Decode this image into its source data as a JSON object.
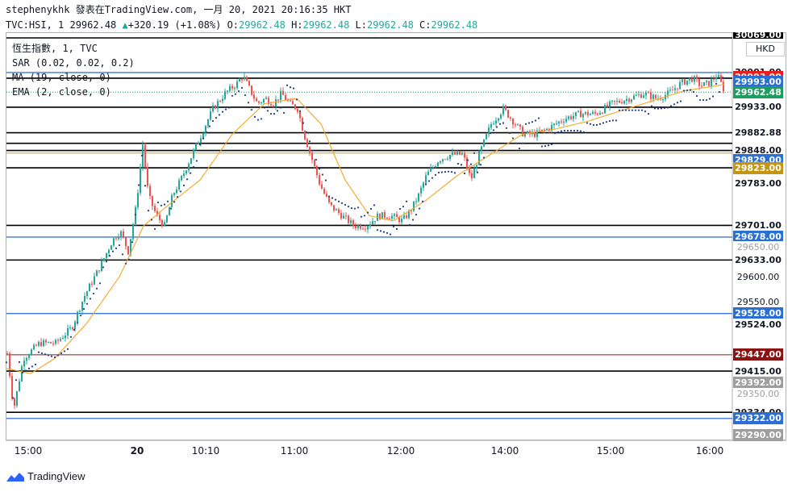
{
  "header": {
    "line1": "stephenykhk 發表在TradingView.com, 一月 20, 2021 20:16:35 HKT",
    "symbol": "TVC:HSI, 1 29962.48",
    "change_arrow": "▲",
    "change": "+320.19 (+1.08%)",
    "ohlc": [
      {
        "k": "O:",
        "v": "29962.48"
      },
      {
        "k": "H:",
        "v": "29962.48"
      },
      {
        "k": "L:",
        "v": "29962.48"
      },
      {
        "k": "C:",
        "v": "29962.48"
      }
    ]
  },
  "indicators": [
    "恆生指數, 1, TVC",
    "SAR (0.02, 0.02, 0.2)",
    "MA (19, close, 0)",
    "EMA (2, close, 0)"
  ],
  "currency": "HKD",
  "price_axis": {
    "top_value": 30069.0,
    "top_partial_label": "30069.00",
    "labels": [
      {
        "text": "30001.00",
        "value": 30001.0,
        "style": "plain",
        "bold": true
      },
      {
        "text": "29993.00",
        "value": 29993.0,
        "style": "red"
      },
      {
        "text": "29993.00",
        "value": 29982.5,
        "style": "blue"
      },
      {
        "text": "29962.48",
        "value": 29962.48,
        "style": "green"
      },
      {
        "text": "29933.00",
        "value": 29933.0,
        "style": "plain",
        "bold": true
      },
      {
        "text": "29882.88",
        "value": 29882.88,
        "style": "plain",
        "bold": true
      },
      {
        "text": "29848.00",
        "value": 29848.0,
        "style": "plain",
        "bold": true
      },
      {
        "text": "29829.00",
        "value": 29829.0,
        "style": "blue"
      },
      {
        "text": "29823.00",
        "value": 29814.0,
        "style": "gold"
      },
      {
        "text": "29783.00",
        "value": 29783.0,
        "style": "plain",
        "bold": true
      },
      {
        "text": "29701.00",
        "value": 29701.0,
        "style": "plain",
        "bold": true
      },
      {
        "text": "29678.00",
        "value": 29678.0,
        "style": "blue"
      },
      {
        "text": "29650.00",
        "value": 29658.0,
        "style": "faint"
      },
      {
        "text": "29633.00",
        "value": 29633.0,
        "style": "plain",
        "bold": true
      },
      {
        "text": "29600.00",
        "value": 29600.0,
        "style": "plain"
      },
      {
        "text": "29550.00",
        "value": 29550.0,
        "style": "plain"
      },
      {
        "text": "29528.00",
        "value": 29528.0,
        "style": "blue"
      },
      {
        "text": "29524.00",
        "value": 29506.0,
        "style": "plain",
        "bold": true
      },
      {
        "text": "29447.00",
        "value": 29447.0,
        "style": "darkred"
      },
      {
        "text": "29415.00",
        "value": 29415.0,
        "style": "plain",
        "bold": true
      },
      {
        "text": "29392.00",
        "value": 29392.0,
        "style": "gray"
      },
      {
        "text": "29350.00",
        "value": 29370.0,
        "style": "faint"
      },
      {
        "text": "29334.00",
        "value": 29334.0,
        "style": "plain",
        "bold": true
      },
      {
        "text": "29322.00",
        "value": 29322.0,
        "style": "blue"
      },
      {
        "text": "29290.00",
        "value": 29290.0,
        "style": "gray"
      }
    ]
  },
  "levels": [
    {
      "value": 30069,
      "kind": "black"
    },
    {
      "value": 30001,
      "kind": "blue"
    },
    {
      "value": 29990,
      "kind": "black"
    },
    {
      "value": 29933,
      "kind": "black"
    },
    {
      "value": 29882.88,
      "kind": "black"
    },
    {
      "value": 29862,
      "kind": "black"
    },
    {
      "value": 29848,
      "kind": "black"
    },
    {
      "value": 29843,
      "kind": "gold"
    },
    {
      "value": 29814,
      "kind": "black"
    },
    {
      "value": 29701,
      "kind": "black"
    },
    {
      "value": 29678,
      "kind": "blue"
    },
    {
      "value": 29633,
      "kind": "black"
    },
    {
      "value": 29528,
      "kind": "blue"
    },
    {
      "value": 29447,
      "kind": "darkred"
    },
    {
      "value": 29415,
      "kind": "black"
    },
    {
      "value": 29334,
      "kind": "black"
    },
    {
      "value": 29322,
      "kind": "blue"
    }
  ],
  "time_axis": [
    "15:00",
    "20",
    "10:10",
    "11:00",
    "12:00",
    "14:00",
    "15:00",
    "16:00"
  ],
  "colors": {
    "up": "#26a69a",
    "down": "#ef5350",
    "sar": "#1e3a8a",
    "ma": "#f5a623",
    "level_black": "#000000",
    "level_blue": "#3b78d8",
    "level_gold": "#c8a018",
    "level_darkred": "#8b1a1a",
    "label_red": "#e91e1e",
    "label_blue": "#2a6fd6",
    "label_green": "#1b9e5f",
    "label_gold": "#c49511",
    "label_darkred": "#8b1212",
    "label_gray": "#9e9e9e"
  },
  "chart_data": {
    "type": "candlestick",
    "symbol": "TVC:HSI",
    "interval": "1",
    "ylim": [
      29290,
      30069
    ],
    "close_path": [
      [
        0,
        29450
      ],
      [
        8,
        29340
      ],
      [
        20,
        29440
      ],
      [
        40,
        29470
      ],
      [
        60,
        29470
      ],
      [
        80,
        29500
      ],
      [
        95,
        29560
      ],
      [
        115,
        29620
      ],
      [
        130,
        29670
      ],
      [
        140,
        29690
      ],
      [
        150,
        29650
      ],
      [
        160,
        29740
      ],
      [
        168,
        29860
      ],
      [
        175,
        29760
      ],
      [
        185,
        29720
      ],
      [
        195,
        29700
      ],
      [
        205,
        29760
      ],
      [
        215,
        29790
      ],
      [
        235,
        29860
      ],
      [
        255,
        29930
      ],
      [
        270,
        29960
      ],
      [
        285,
        29980
      ],
      [
        292,
        29995
      ],
      [
        300,
        29970
      ],
      [
        310,
        29940
      ],
      [
        320,
        29950
      ],
      [
        330,
        29940
      ],
      [
        340,
        29960
      ],
      [
        350,
        29940
      ],
      [
        360,
        29930
      ],
      [
        368,
        29880
      ],
      [
        378,
        29830
      ],
      [
        388,
        29780
      ],
      [
        400,
        29740
      ],
      [
        415,
        29720
      ],
      [
        430,
        29700
      ],
      [
        445,
        29700
      ],
      [
        460,
        29720
      ],
      [
        475,
        29720
      ],
      [
        490,
        29710
      ],
      [
        500,
        29730
      ],
      [
        510,
        29760
      ],
      [
        520,
        29800
      ],
      [
        535,
        29830
      ],
      [
        550,
        29840
      ],
      [
        565,
        29840
      ],
      [
        575,
        29790
      ],
      [
        585,
        29840
      ],
      [
        600,
        29900
      ],
      [
        615,
        29930
      ],
      [
        625,
        29910
      ],
      [
        640,
        29880
      ],
      [
        655,
        29880
      ],
      [
        670,
        29890
      ],
      [
        690,
        29910
      ],
      [
        710,
        29920
      ],
      [
        730,
        29920
      ],
      [
        750,
        29940
      ],
      [
        770,
        29950
      ],
      [
        790,
        29960
      ],
      [
        805,
        29950
      ],
      [
        820,
        29960
      ],
      [
        835,
        29980
      ],
      [
        850,
        29990
      ],
      [
        860,
        29975
      ],
      [
        870,
        29980
      ],
      [
        880,
        29997
      ],
      [
        890,
        29962
      ]
    ],
    "ma": [
      [
        0,
        29420
      ],
      [
        30,
        29410
      ],
      [
        60,
        29440
      ],
      [
        100,
        29510
      ],
      [
        140,
        29600
      ],
      [
        170,
        29700
      ],
      [
        200,
        29740
      ],
      [
        240,
        29790
      ],
      [
        280,
        29880
      ],
      [
        320,
        29940
      ],
      [
        360,
        29950
      ],
      [
        390,
        29900
      ],
      [
        420,
        29790
      ],
      [
        450,
        29720
      ],
      [
        480,
        29710
      ],
      [
        520,
        29750
      ],
      [
        560,
        29800
      ],
      [
        600,
        29840
      ],
      [
        640,
        29880
      ],
      [
        680,
        29890
      ],
      [
        720,
        29905
      ],
      [
        760,
        29925
      ],
      [
        800,
        29945
      ],
      [
        840,
        29965
      ],
      [
        880,
        29975
      ],
      [
        890,
        29978
      ]
    ]
  }
}
